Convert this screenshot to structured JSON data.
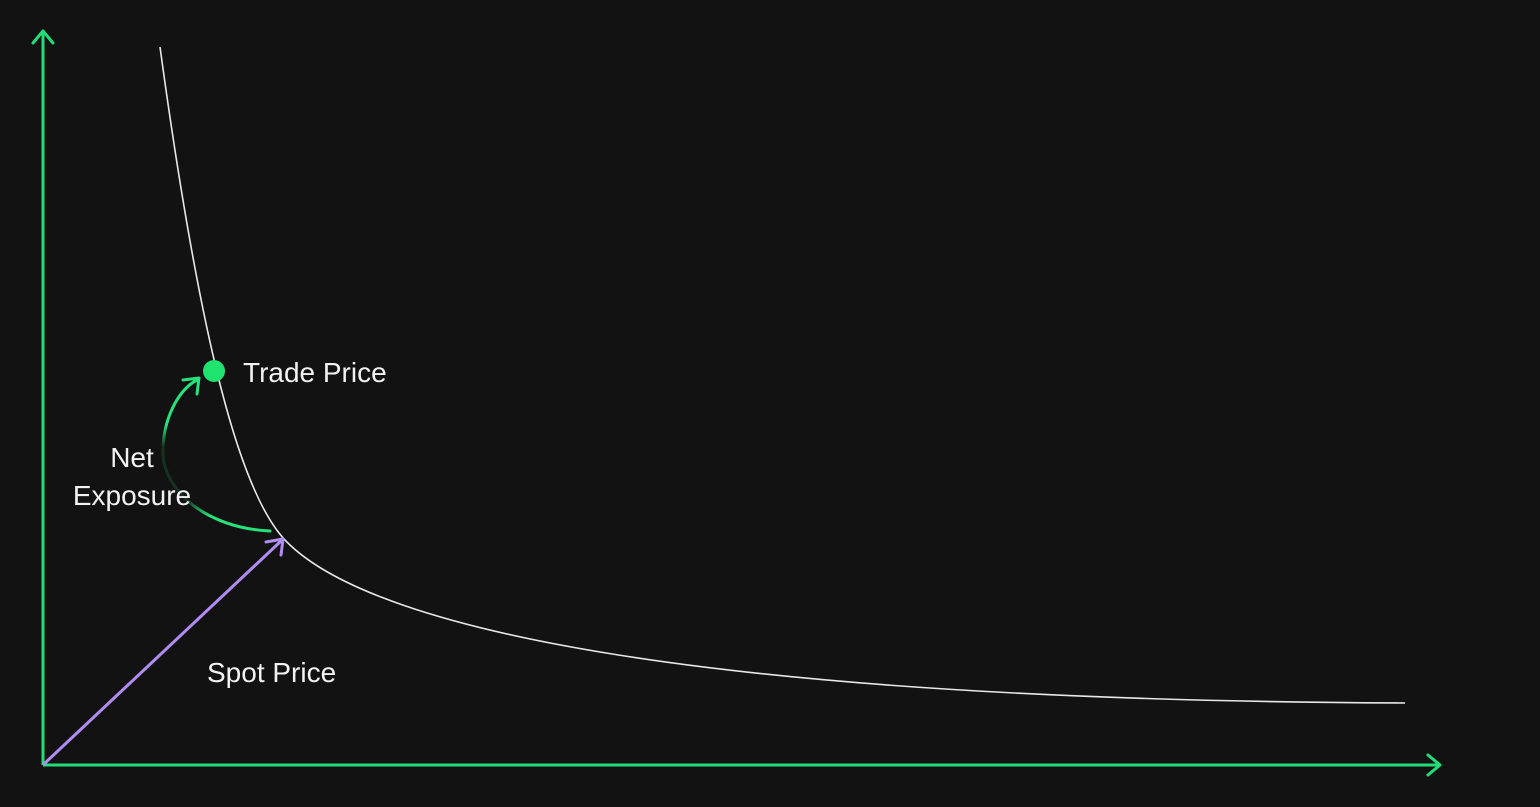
{
  "labels": {
    "trade_price": "Trade Price",
    "net_exposure_line1": "Net",
    "net_exposure_line2": "Exposure",
    "spot_price": "Spot Price"
  },
  "colors": {
    "background": "#121212",
    "axis": "#22dd77",
    "curve": "#e8e8e8",
    "trade_point": "#1ee46f",
    "exposure_arrow": "#27e27a",
    "spot_arrow": "#b08cf2",
    "text": "#f2f2f2"
  }
}
